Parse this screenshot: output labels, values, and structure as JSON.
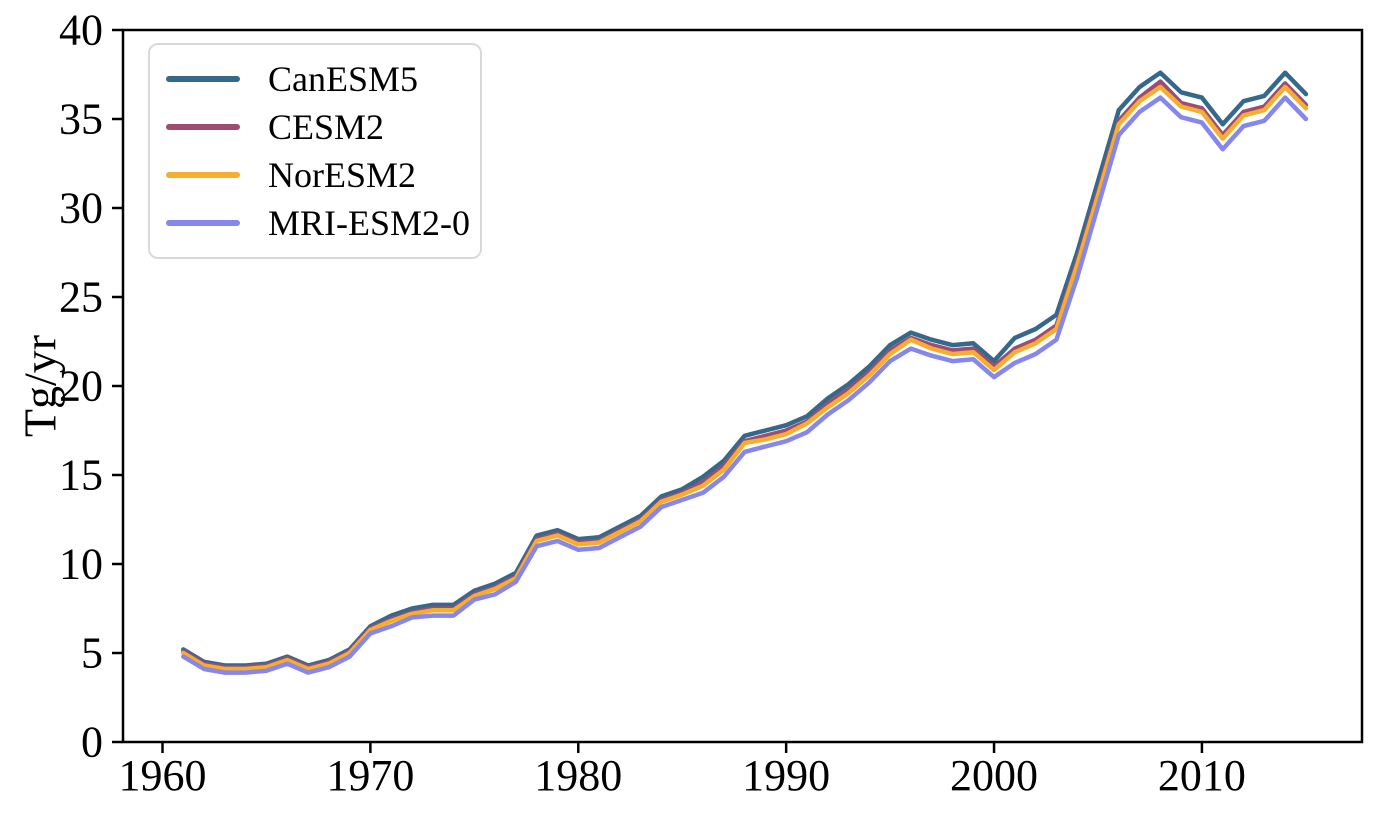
{
  "figure": {
    "background": "#ffffff",
    "axes_color": "#000000"
  },
  "chart_data": {
    "type": "line",
    "title": "",
    "xlabel": "",
    "ylabel": "Tg/yr",
    "grid": false,
    "legend_position": "upper left",
    "xlim": [
      1958.1,
      2017.7
    ],
    "ylim": [
      0,
      40
    ],
    "xticks": [
      1960,
      1970,
      1980,
      1990,
      2000,
      2010
    ],
    "yticks": [
      0,
      5,
      10,
      15,
      20,
      25,
      30,
      35,
      40
    ],
    "x": [
      1961,
      1962,
      1963,
      1964,
      1965,
      1966,
      1967,
      1968,
      1969,
      1970,
      1971,
      1972,
      1973,
      1974,
      1975,
      1976,
      1977,
      1978,
      1979,
      1980,
      1981,
      1982,
      1983,
      1984,
      1985,
      1986,
      1987,
      1988,
      1989,
      1990,
      1991,
      1992,
      1993,
      1994,
      1995,
      1996,
      1997,
      1998,
      1999,
      2000,
      2001,
      2002,
      2003,
      2004,
      2005,
      2006,
      2007,
      2008,
      2009,
      2010,
      2011,
      2012,
      2013,
      2014,
      2015
    ],
    "series": [
      {
        "name": "CanESM5",
        "color": "#35698c",
        "values": [
          5.2,
          4.5,
          4.3,
          4.3,
          4.4,
          4.8,
          4.3,
          4.6,
          5.2,
          6.5,
          7.1,
          7.5,
          7.7,
          7.7,
          8.5,
          8.9,
          9.5,
          11.6,
          11.9,
          11.4,
          11.5,
          12.1,
          12.7,
          13.8,
          14.2,
          14.9,
          15.8,
          17.2,
          17.5,
          17.8,
          18.3,
          19.3,
          20.1,
          21.1,
          22.3,
          23.0,
          22.6,
          22.3,
          22.4,
          21.4,
          22.7,
          23.2,
          24.0,
          27.5,
          31.5,
          35.5,
          36.8,
          37.6,
          36.5,
          36.2,
          34.7,
          36.0,
          36.3,
          37.6,
          36.4
        ]
      },
      {
        "name": "CESM2",
        "color": "#9e4d70",
        "values": [
          5.1,
          4.4,
          4.2,
          4.2,
          4.3,
          4.7,
          4.2,
          4.5,
          5.1,
          6.4,
          6.9,
          7.3,
          7.5,
          7.5,
          8.3,
          8.7,
          9.3,
          11.4,
          11.7,
          11.2,
          11.3,
          11.9,
          12.5,
          13.6,
          14.0,
          14.6,
          15.5,
          16.9,
          17.2,
          17.5,
          18.0,
          19.0,
          19.8,
          20.8,
          22.0,
          22.7,
          22.3,
          22.0,
          22.1,
          21.1,
          22.1,
          22.6,
          23.4,
          27.0,
          30.9,
          34.9,
          36.2,
          37.1,
          35.9,
          35.6,
          34.1,
          35.4,
          35.7,
          37.0,
          35.8
        ]
      },
      {
        "name": "NorESM2",
        "color": "#f5ae30",
        "values": [
          5.0,
          4.3,
          4.1,
          4.1,
          4.2,
          4.6,
          4.1,
          4.4,
          5.0,
          6.3,
          6.8,
          7.2,
          7.4,
          7.4,
          8.2,
          8.6,
          9.2,
          11.3,
          11.6,
          11.1,
          11.2,
          11.8,
          12.4,
          13.5,
          13.9,
          14.4,
          15.3,
          16.8,
          17.0,
          17.3,
          17.9,
          18.8,
          19.6,
          20.6,
          21.8,
          22.6,
          22.1,
          21.8,
          21.9,
          20.9,
          21.9,
          22.4,
          23.2,
          26.8,
          30.7,
          34.7,
          36.0,
          36.8,
          35.7,
          35.4,
          33.9,
          35.2,
          35.5,
          36.8,
          35.6
        ]
      },
      {
        "name": "MRI-ESM2-0",
        "color": "#8587ec",
        "values": [
          4.8,
          4.1,
          3.9,
          3.9,
          4.0,
          4.4,
          3.9,
          4.2,
          4.8,
          6.1,
          6.5,
          7.0,
          7.1,
          7.1,
          8.0,
          8.3,
          9.0,
          11.0,
          11.3,
          10.8,
          10.9,
          11.5,
          12.1,
          13.2,
          13.6,
          14.0,
          14.9,
          16.3,
          16.6,
          16.9,
          17.4,
          18.4,
          19.2,
          20.2,
          21.4,
          22.1,
          21.7,
          21.4,
          21.5,
          20.5,
          21.3,
          21.8,
          22.6,
          26.1,
          30.1,
          34.1,
          35.4,
          36.2,
          35.1,
          34.8,
          33.3,
          34.6,
          34.9,
          36.2,
          35.0
        ]
      }
    ]
  }
}
